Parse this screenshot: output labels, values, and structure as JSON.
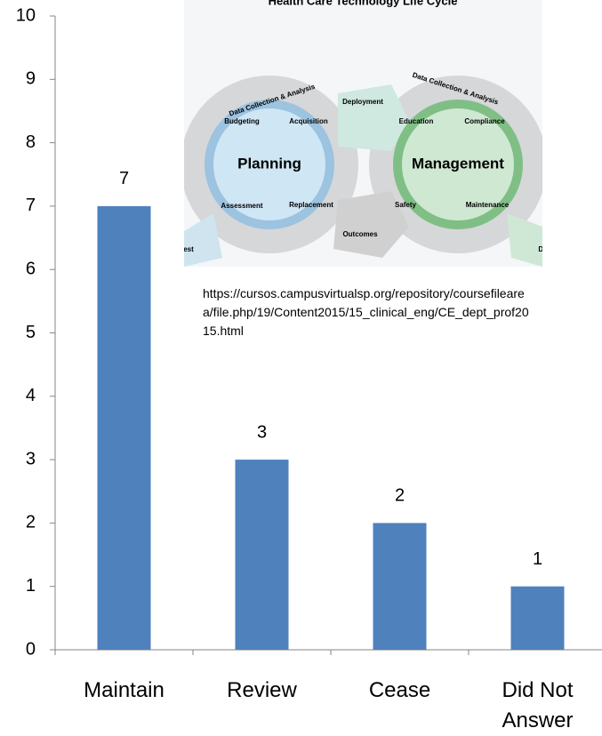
{
  "chart_data": {
    "type": "bar",
    "categories": [
      "Maintain",
      "Review",
      "Cease",
      "Did Not Answer"
    ],
    "values": [
      7,
      3,
      2,
      1
    ],
    "color": "#4f81bd",
    "ylim": [
      0,
      10
    ],
    "yticks": [
      0,
      1,
      2,
      3,
      4,
      5,
      6,
      7,
      8,
      9,
      10
    ],
    "grid": false,
    "data_labels": true,
    "source_url": "https://cursos.campusvirtualsp.org/repository/coursefilearea/file.php/19/Content2015/15_clinical_eng/CE_dept_prof2015.html",
    "inset": {
      "title": "Health Care Technology Life Cycle",
      "labels": [
        "Planning",
        "Management",
        "Data Collection & Analysis",
        "Budgeting",
        "Acquisition",
        "Assessment",
        "Replacement",
        "Deployment",
        "Outcomes",
        "Data Collection & Analysis",
        "Education",
        "Compliance",
        "Safety",
        "Maintenance",
        "Request",
        "Disposal"
      ]
    }
  }
}
